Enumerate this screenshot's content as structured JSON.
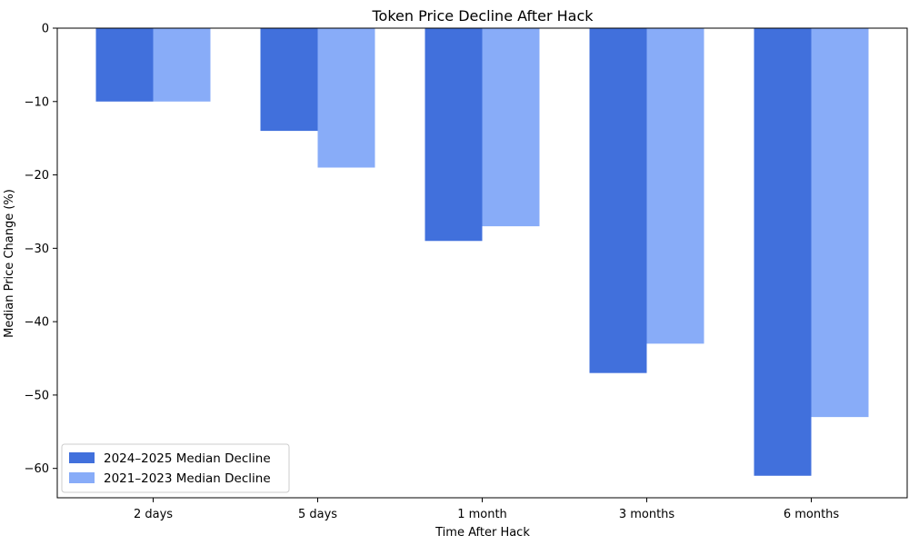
{
  "chart_data": {
    "type": "bar",
    "title": "Token Price Decline After Hack",
    "xlabel": "Time After Hack",
    "ylabel": "Median Price Change (%)",
    "categories": [
      "2 days",
      "5 days",
      "1 month",
      "3 months",
      "6 months"
    ],
    "series": [
      {
        "name": "2024–2025 Median Decline",
        "values": [
          -10,
          -14,
          -29,
          -47,
          -61
        ],
        "color": "#4170dc"
      },
      {
        "name": "2021–2023 Median Decline",
        "values": [
          -10,
          -19,
          -27,
          -43,
          -53
        ],
        "color": "#88acf8"
      }
    ],
    "ylim": [
      -64,
      0
    ],
    "yticks": [
      0,
      -10,
      -20,
      -30,
      -40,
      -50,
      -60
    ],
    "ytick_labels": [
      "0",
      "−10",
      "−20",
      "−30",
      "−40",
      "−50",
      "−60"
    ],
    "legend_position": "lower-left",
    "grid": false
  }
}
